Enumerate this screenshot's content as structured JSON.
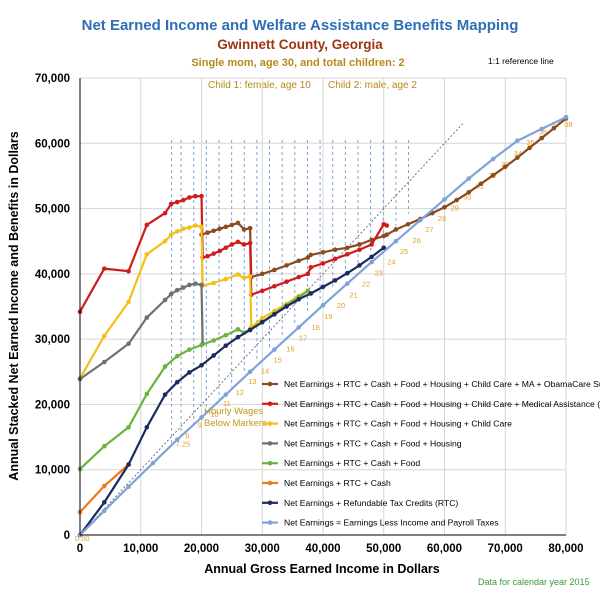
{
  "chart_data": {
    "type": "line",
    "title": "Net Earned Income and Welfare Assistance Benefits Mapping",
    "subtitle": "Gwinnett County, Georgia",
    "subtitle2": "Single mom, age 30, and total children: 2",
    "child1": "Child 1: female, age 10",
    "child2": "Child 2: male, age 2",
    "xlabel": "Annual Gross Earned Income in Dollars",
    "ylabel": "Annual Stacked Net Earned Income and Benefits in Dollars",
    "xlim": [
      0,
      80000
    ],
    "ylim": [
      0,
      70000
    ],
    "x_ticks": [
      "0",
      "10,000",
      "20,000",
      "30,000",
      "40,000",
      "50,000",
      "60,000",
      "70,000",
      "80,000"
    ],
    "y_ticks": [
      "0",
      "10,000",
      "20,000",
      "30,000",
      "40,000",
      "50,000",
      "60,000",
      "70,000"
    ],
    "reference_line_label": "1:1 reference line",
    "hourly_wage_note": "Hourly Wages\nBelow Markers",
    "data_note": "Data for calendar year 2015",
    "zero_label": "0.00",
    "wage_markers": [
      {
        "label": "7.25",
        "x": 15080
      },
      {
        "label": "8",
        "x": 16640
      },
      {
        "label": "9",
        "x": 18720
      },
      {
        "label": "10",
        "x": 20800
      },
      {
        "label": "11",
        "x": 22880
      },
      {
        "label": "12",
        "x": 24960
      },
      {
        "label": "13",
        "x": 27040
      },
      {
        "label": "14",
        "x": 29120
      },
      {
        "label": "15",
        "x": 31200
      },
      {
        "label": "16",
        "x": 33280
      },
      {
        "label": "17",
        "x": 35360
      },
      {
        "label": "18",
        "x": 37440
      },
      {
        "label": "19",
        "x": 39520
      },
      {
        "label": "20",
        "x": 41600
      },
      {
        "label": "21",
        "x": 43680
      },
      {
        "label": "22",
        "x": 45760
      },
      {
        "label": "23",
        "x": 47840
      },
      {
        "label": "24",
        "x": 49920
      },
      {
        "label": "25",
        "x": 52000
      },
      {
        "label": "26",
        "x": 54080
      },
      {
        "label": "27",
        "x": 56160
      },
      {
        "label": "28",
        "x": 58240
      },
      {
        "label": "29",
        "x": 60320
      },
      {
        "label": "30",
        "x": 62400
      },
      {
        "label": "31",
        "x": 64480
      },
      {
        "label": "32",
        "x": 66560
      },
      {
        "label": "33",
        "x": 68640
      },
      {
        "label": "34",
        "x": 70720
      },
      {
        "label": "35",
        "x": 72800
      },
      {
        "label": "36",
        "x": 74880
      },
      {
        "label": "37",
        "x": 76960
      },
      {
        "label": "38",
        "x": 79040
      }
    ],
    "series": [
      {
        "name": "Net Earnings + RTC + Cash + Food + Housing + Child Care + MA + ObamaCare Subsidies",
        "color": "#8a4b1e",
        "points": [
          [
            20000,
            46000
          ],
          [
            21000,
            46300
          ],
          [
            22000,
            46600
          ],
          [
            23000,
            46900
          ],
          [
            24000,
            47200
          ],
          [
            25000,
            47500
          ],
          [
            26000,
            47800
          ],
          [
            27000,
            46800
          ],
          [
            28000,
            47000
          ],
          [
            28200,
            39500
          ],
          [
            30000,
            40000
          ],
          [
            32000,
            40600
          ],
          [
            34000,
            41300
          ],
          [
            36000,
            42000
          ],
          [
            37500,
            42500
          ],
          [
            38000,
            42900
          ],
          [
            40000,
            43300
          ],
          [
            42000,
            43700
          ],
          [
            44000,
            44000
          ],
          [
            46000,
            44500
          ],
          [
            48000,
            45200
          ],
          [
            50000,
            45800
          ],
          [
            50500,
            46000
          ],
          [
            52000,
            46800
          ],
          [
            54000,
            47600
          ],
          [
            56000,
            48400
          ],
          [
            58000,
            49300
          ],
          [
            60000,
            50200
          ],
          [
            62000,
            51300
          ],
          [
            64000,
            52500
          ],
          [
            66000,
            53800
          ],
          [
            68000,
            55100
          ],
          [
            70000,
            56400
          ],
          [
            72000,
            57800
          ],
          [
            74000,
            59300
          ],
          [
            76000,
            60800
          ],
          [
            78000,
            62300
          ],
          [
            80000,
            63800
          ]
        ]
      },
      {
        "name": "Net Earnings + RTC + Cash + Food + Housing + Child Care + Medical Assistance (MA)",
        "color": "#d01c1c",
        "points": [
          [
            0,
            34200
          ],
          [
            4000,
            40800
          ],
          [
            8000,
            40400
          ],
          [
            11000,
            47500
          ],
          [
            14000,
            49300
          ],
          [
            15000,
            50700
          ],
          [
            16000,
            51000
          ],
          [
            17000,
            51300
          ],
          [
            18000,
            51700
          ],
          [
            19000,
            51900
          ],
          [
            20000,
            51900
          ],
          [
            20200,
            42500
          ],
          [
            21000,
            42700
          ],
          [
            22000,
            43100
          ],
          [
            23000,
            43500
          ],
          [
            24000,
            44000
          ],
          [
            25000,
            44500
          ],
          [
            26000,
            44900
          ],
          [
            27000,
            44500
          ],
          [
            28000,
            44700
          ],
          [
            28200,
            36800
          ],
          [
            30000,
            37400
          ],
          [
            32000,
            38100
          ],
          [
            34000,
            38800
          ],
          [
            36000,
            39500
          ],
          [
            37500,
            40000
          ],
          [
            38000,
            41000
          ],
          [
            40000,
            41600
          ],
          [
            42000,
            42300
          ],
          [
            44000,
            43000
          ],
          [
            46000,
            43700
          ],
          [
            48000,
            44500
          ],
          [
            50000,
            47600
          ],
          [
            50500,
            47400
          ]
        ]
      },
      {
        "name": "Net Earnings + RTC + Cash + Food + Housing + Child Care",
        "color": "#f2c018",
        "points": [
          [
            0,
            24000
          ],
          [
            4000,
            30500
          ],
          [
            8000,
            35700
          ],
          [
            11000,
            43000
          ],
          [
            14000,
            45000
          ],
          [
            15000,
            46000
          ],
          [
            16000,
            46500
          ],
          [
            17000,
            46900
          ],
          [
            18000,
            47100
          ],
          [
            19000,
            47400
          ],
          [
            20000,
            47200
          ],
          [
            20200,
            38200
          ],
          [
            22000,
            38600
          ],
          [
            24000,
            39200
          ],
          [
            26000,
            39900
          ],
          [
            27000,
            39400
          ],
          [
            28000,
            39600
          ],
          [
            28200,
            31800
          ],
          [
            30000,
            33200
          ],
          [
            32000,
            34300
          ],
          [
            34000,
            35400
          ],
          [
            36000,
            36600
          ],
          [
            37500,
            37400
          ]
        ]
      },
      {
        "name": "Net Earnings + RTC + Cash + Food + Housing",
        "color": "#707070",
        "points": [
          [
            0,
            23900
          ],
          [
            4000,
            26500
          ],
          [
            8000,
            29300
          ],
          [
            11000,
            33300
          ],
          [
            14000,
            36000
          ],
          [
            15000,
            36900
          ],
          [
            16000,
            37500
          ],
          [
            17000,
            37900
          ],
          [
            18000,
            38300
          ],
          [
            19000,
            38500
          ],
          [
            20000,
            38300
          ],
          [
            20200,
            29300
          ]
        ]
      },
      {
        "name": "Net Earnings + RTC + Cash + Food",
        "color": "#6ab33d",
        "points": [
          [
            0,
            10100
          ],
          [
            4000,
            13600
          ],
          [
            8000,
            16500
          ],
          [
            11000,
            21600
          ],
          [
            14000,
            25800
          ],
          [
            16000,
            27400
          ],
          [
            18000,
            28400
          ],
          [
            20000,
            29100
          ],
          [
            22000,
            29800
          ],
          [
            24000,
            30600
          ],
          [
            26000,
            31500
          ],
          [
            27000,
            31000
          ],
          [
            28000,
            31500
          ],
          [
            30000,
            32600
          ],
          [
            32000,
            33900
          ],
          [
            34000,
            35200
          ],
          [
            36000,
            36400
          ],
          [
            37500,
            37400
          ]
        ]
      },
      {
        "name": "Net Earnings + RTC + Cash",
        "color": "#f07a19",
        "points": [
          [
            0,
            3500
          ],
          [
            4000,
            7500
          ],
          [
            8000,
            10800
          ]
        ]
      },
      {
        "name": "Net Earnings + Refundable Tax Credits (RTC)",
        "color": "#1c2a5e",
        "points": [
          [
            0,
            0
          ],
          [
            4000,
            5000
          ],
          [
            8000,
            10800
          ],
          [
            11000,
            16500
          ],
          [
            14000,
            21500
          ],
          [
            16000,
            23400
          ],
          [
            18000,
            24900
          ],
          [
            20000,
            26000
          ],
          [
            22000,
            27500
          ],
          [
            24000,
            29000
          ],
          [
            26000,
            30300
          ],
          [
            28000,
            31400
          ],
          [
            30000,
            32600
          ],
          [
            32000,
            33800
          ],
          [
            34000,
            35000
          ],
          [
            36000,
            36100
          ],
          [
            38000,
            37000
          ],
          [
            40000,
            38000
          ],
          [
            42000,
            39000
          ],
          [
            44000,
            40100
          ],
          [
            46000,
            41300
          ],
          [
            48000,
            42600
          ],
          [
            50000,
            44000
          ]
        ]
      },
      {
        "name": "Net Earnings =  Earnings Less Income and Payroll Taxes",
        "color": "#7fa3d8",
        "points": [
          [
            0,
            0
          ],
          [
            4000,
            3700
          ],
          [
            8000,
            7400
          ],
          [
            12000,
            11000
          ],
          [
            16000,
            14600
          ],
          [
            20000,
            18000
          ],
          [
            24000,
            21500
          ],
          [
            28000,
            25000
          ],
          [
            32000,
            28400
          ],
          [
            36000,
            31800
          ],
          [
            40000,
            35200
          ],
          [
            44000,
            38500
          ],
          [
            48000,
            41800
          ],
          [
            52000,
            45000
          ],
          [
            56000,
            48200
          ],
          [
            60000,
            51400
          ],
          [
            64000,
            54600
          ],
          [
            68000,
            57600
          ],
          [
            72000,
            60400
          ],
          [
            76000,
            62200
          ],
          [
            80000,
            64000
          ]
        ]
      }
    ]
  }
}
